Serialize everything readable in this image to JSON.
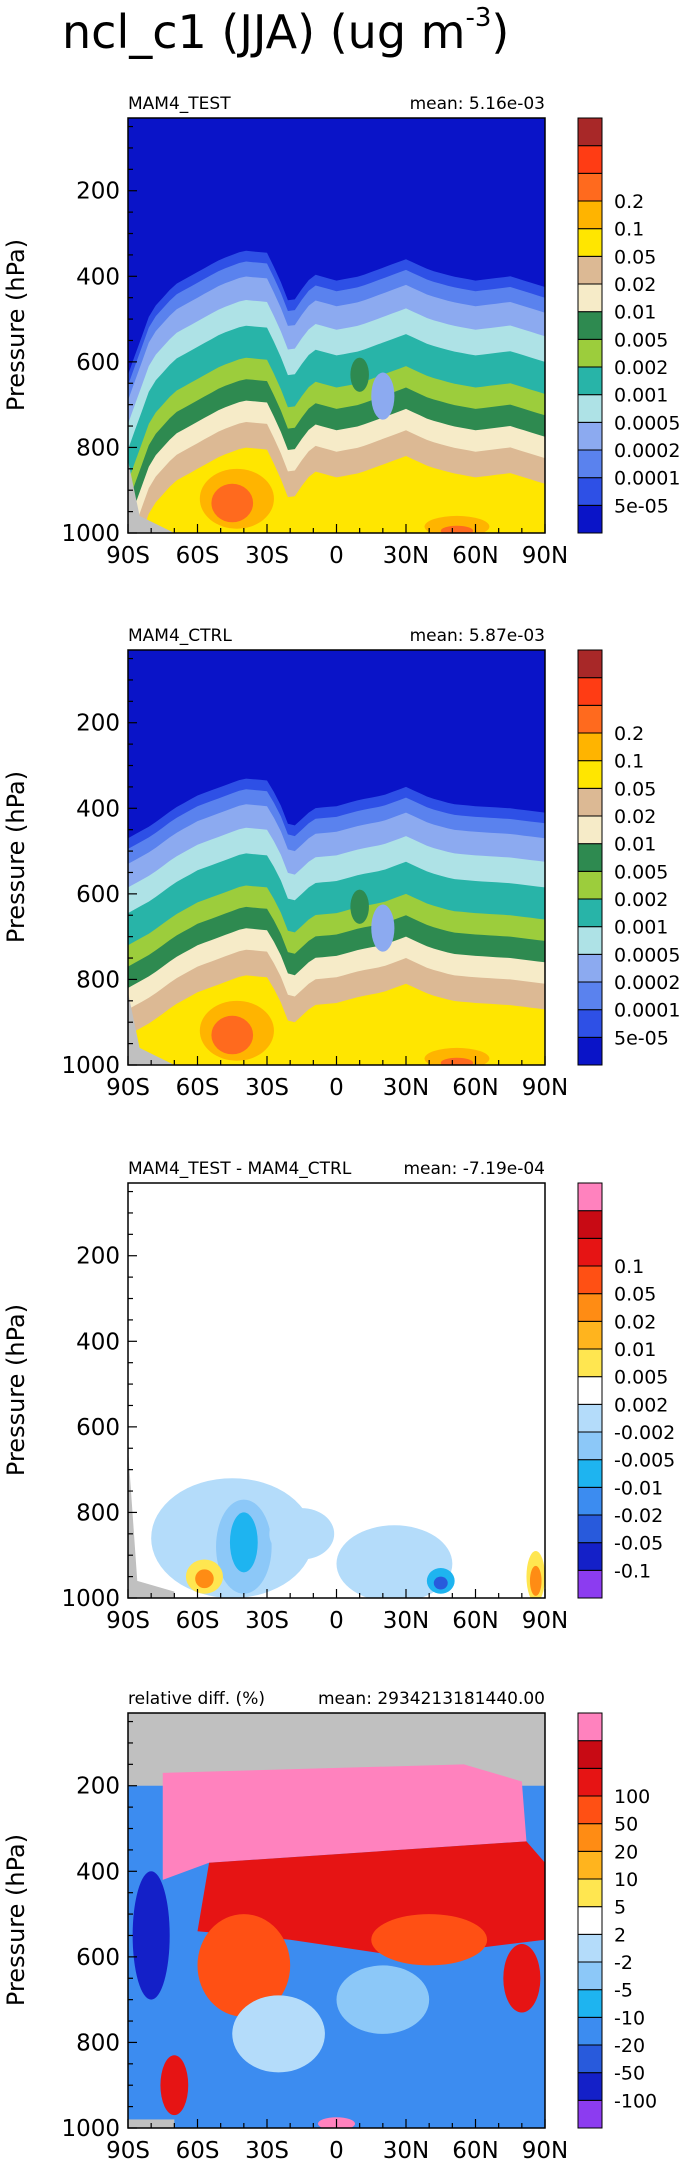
{
  "figure": {
    "title_main": "ncl_c1 (JJA) (ug m",
    "title_exp": "-3",
    "title_close": ")"
  },
  "colors": {
    "abs": [
      "#0a14c8",
      "#2e50e6",
      "#5a82ee",
      "#8caaf0",
      "#aee2e6",
      "#28b4a8",
      "#9ccd3c",
      "#2e8a50",
      "#f6ebc8",
      "#dcb994",
      "#ffe600",
      "#ffb400",
      "#ff6a1e",
      "#ff3c14",
      "#a82828"
    ],
    "diff": [
      "#8c3cf0",
      "#1420c8",
      "#285adc",
      "#3c8cf0",
      "#1eb4f0",
      "#8cc8f8",
      "#b4dcfa",
      "#ffffff",
      "#ffe650",
      "#ffb41e",
      "#ff8c14",
      "#ff5014",
      "#e61414",
      "#c80a14",
      "#ff82be"
    ],
    "missing": "#c0c0c0"
  },
  "chart_data": [
    {
      "type": "heatmap",
      "title": "MAM4_TEST",
      "mean_label": "mean: 5.16e-03",
      "ylabel": "Pressure (hPa)",
      "x_ticks": [
        "90S",
        "60S",
        "30S",
        "0",
        "30N",
        "60N",
        "90N"
      ],
      "y_ticks": [
        "200",
        "400",
        "600",
        "800",
        "1000"
      ],
      "xlim": [
        -90,
        90
      ],
      "ylim": [
        1000,
        30
      ],
      "colorbar_labels": [
        "5e-05",
        "0.0001",
        "0.0002",
        "0.0005",
        "0.001",
        "0.002",
        "0.005",
        "0.01",
        "0.02",
        "0.05",
        "0.1",
        "0.2"
      ],
      "upper_edge_hPa": [
        [
          -90,
          630
        ],
        [
          -80,
          480
        ],
        [
          -70,
          420
        ],
        [
          -60,
          390
        ],
        [
          -50,
          360
        ],
        [
          -40,
          340
        ],
        [
          -30,
          345
        ],
        [
          -25,
          400
        ],
        [
          -20,
          470
        ],
        [
          -15,
          430
        ],
        [
          -10,
          395
        ],
        [
          0,
          410
        ],
        [
          10,
          400
        ],
        [
          20,
          380
        ],
        [
          30,
          360
        ],
        [
          40,
          385
        ],
        [
          50,
          400
        ],
        [
          60,
          410
        ],
        [
          75,
          400
        ],
        [
          90,
          425
        ]
      ]
    },
    {
      "type": "heatmap",
      "title": "MAM4_CTRL",
      "mean_label": "mean: 5.87e-03",
      "ylabel": "Pressure (hPa)",
      "x_ticks": [
        "90S",
        "60S",
        "30S",
        "0",
        "30N",
        "60N",
        "90N"
      ],
      "y_ticks": [
        "200",
        "400",
        "600",
        "800",
        "1000"
      ],
      "xlim": [
        -90,
        90
      ],
      "ylim": [
        1000,
        30
      ],
      "colorbar_labels": [
        "5e-05",
        "0.0001",
        "0.0002",
        "0.0005",
        "0.001",
        "0.002",
        "0.005",
        "0.01",
        "0.02",
        "0.05",
        "0.1",
        "0.2"
      ],
      "upper_edge_hPa": [
        [
          -90,
          470
        ],
        [
          -80,
          440
        ],
        [
          -70,
          400
        ],
        [
          -60,
          370
        ],
        [
          -50,
          350
        ],
        [
          -40,
          330
        ],
        [
          -30,
          335
        ],
        [
          -25,
          380
        ],
        [
          -20,
          450
        ],
        [
          -15,
          425
        ],
        [
          -10,
          400
        ],
        [
          0,
          395
        ],
        [
          10,
          380
        ],
        [
          20,
          370
        ],
        [
          30,
          350
        ],
        [
          40,
          375
        ],
        [
          50,
          390
        ],
        [
          60,
          395
        ],
        [
          75,
          400
        ],
        [
          90,
          410
        ]
      ]
    },
    {
      "type": "heatmap",
      "title": "MAM4_TEST - MAM4_CTRL",
      "mean_label": "mean: -7.19e-04",
      "ylabel": "Pressure (hPa)",
      "x_ticks": [
        "90S",
        "60S",
        "30S",
        "0",
        "30N",
        "60N",
        "90N"
      ],
      "y_ticks": [
        "200",
        "400",
        "600",
        "800",
        "1000"
      ],
      "xlim": [
        -90,
        90
      ],
      "ylim": [
        1000,
        30
      ],
      "colorbar_labels": [
        "-0.1",
        "-0.05",
        "-0.02",
        "-0.01",
        "-0.005",
        "-0.002",
        "0.002",
        "0.005",
        "0.01",
        "0.02",
        "0.05",
        "0.1"
      ]
    },
    {
      "type": "heatmap",
      "title": "relative diff. (%)",
      "mean_label": "mean: 2934213181440.00",
      "ylabel": "Pressure (hPa)",
      "x_ticks": [
        "90S",
        "60S",
        "30S",
        "0",
        "30N",
        "60N",
        "90N"
      ],
      "y_ticks": [
        "200",
        "400",
        "600",
        "800",
        "1000"
      ],
      "xlim": [
        -90,
        90
      ],
      "ylim": [
        1000,
        30
      ],
      "colorbar_labels": [
        "-100",
        "-50",
        "-20",
        "-10",
        "-5",
        "-2",
        "2",
        "5",
        "10",
        "20",
        "50",
        "100"
      ]
    }
  ]
}
